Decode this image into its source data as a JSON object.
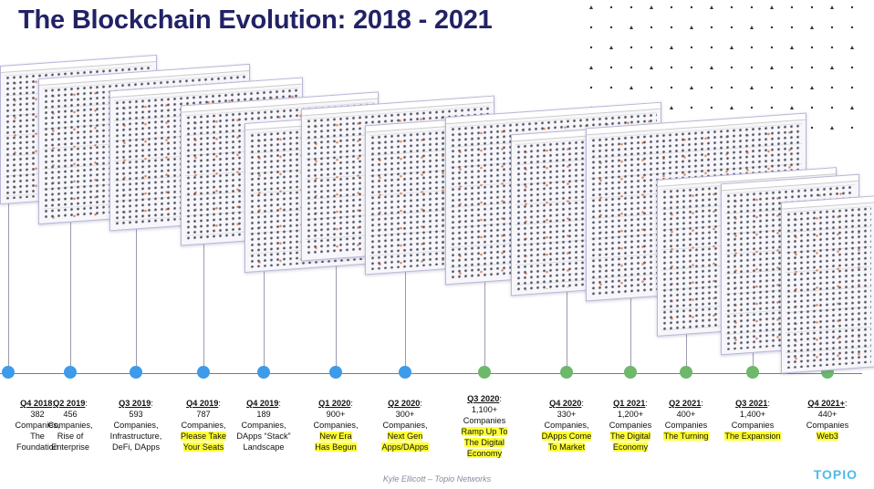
{
  "title": "The Blockchain Evolution: 2018 - 2021",
  "colors": {
    "title": "#222266",
    "blue_marker": "#3d9be9",
    "green_marker": "#6db86a",
    "highlight": "#ffff33",
    "logo": "#4dbbe8"
  },
  "milestones": [
    {
      "quarter": "Q4 2018",
      "lines": [
        "382",
        "Companies,",
        "The",
        "Foundation"
      ],
      "highlight": [],
      "color": "blue"
    },
    {
      "quarter": "Q2 2019",
      "lines": [
        "456",
        "Companies,",
        "Rise of",
        "Enterprise"
      ],
      "highlight": [],
      "color": "blue"
    },
    {
      "quarter": "Q3 2019",
      "lines": [
        "593",
        "Companies,",
        "Infrastructure,",
        "DeFi, DApps"
      ],
      "highlight": [],
      "color": "blue"
    },
    {
      "quarter": "Q4 2019",
      "lines": [
        "787",
        "Companies,"
      ],
      "highlight": [
        "Please Take",
        "Your Seats"
      ],
      "color": "blue"
    },
    {
      "quarter": "Q4 2019",
      "lines": [
        "189",
        "Companies,",
        "DApps “Stack”",
        "Landscape"
      ],
      "highlight": [],
      "color": "blue"
    },
    {
      "quarter": "Q1 2020",
      "lines": [
        "900+",
        "Companies,"
      ],
      "highlight": [
        "New Era",
        "Has Begun"
      ],
      "color": "blue"
    },
    {
      "quarter": "Q2 2020",
      "lines": [
        "300+",
        "Companies,"
      ],
      "highlight": [
        "Next Gen",
        "Apps/DApps"
      ],
      "color": "blue"
    },
    {
      "quarter": "Q3 2020",
      "lines": [
        "1,100+",
        "Companies"
      ],
      "highlight": [
        "Ramp Up To",
        "The Digital",
        "Economy"
      ],
      "color": "green"
    },
    {
      "quarter": "Q4 2020",
      "lines": [
        "330+",
        "Companies,"
      ],
      "highlight": [
        "DApps Come",
        "To Market"
      ],
      "color": "green"
    },
    {
      "quarter": "Q1 2021",
      "lines": [
        "1,200+",
        "Companies"
      ],
      "highlight": [
        "The Digital",
        "Economy"
      ],
      "color": "green"
    },
    {
      "quarter": "Q2 2021",
      "lines": [
        "400+",
        "Companies"
      ],
      "highlight": [
        "The Turning"
      ],
      "color": "green"
    },
    {
      "quarter": "Q3 2021",
      "lines": [
        "1,400+",
        "Companies"
      ],
      "highlight": [
        "The Expansion"
      ],
      "color": "green"
    },
    {
      "quarter": "Q4 2021+",
      "lines": [
        "440+",
        "Companies"
      ],
      "highlight": [
        "Web3"
      ],
      "color": "green"
    }
  ],
  "footer": "Kyle Ellicott – Topio Networks",
  "logo": "TOPIO"
}
